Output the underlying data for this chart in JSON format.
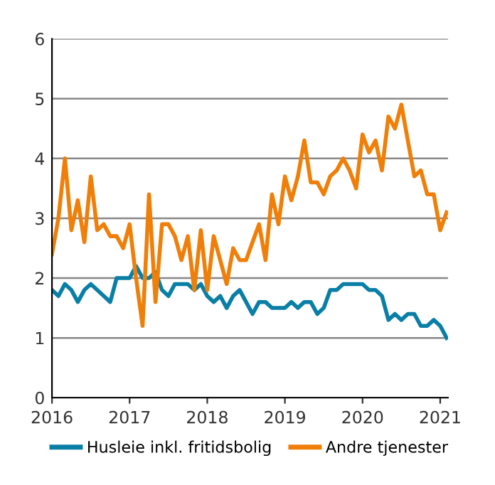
{
  "chart_data": {
    "type": "line",
    "x": [
      2016.0,
      2016.083,
      2016.167,
      2016.25,
      2016.333,
      2016.417,
      2016.5,
      2016.583,
      2016.667,
      2016.75,
      2016.833,
      2016.917,
      2017.0,
      2017.083,
      2017.167,
      2017.25,
      2017.333,
      2017.417,
      2017.5,
      2017.583,
      2017.667,
      2017.75,
      2017.833,
      2017.917,
      2018.0,
      2018.083,
      2018.167,
      2018.25,
      2018.333,
      2018.417,
      2018.5,
      2018.583,
      2018.667,
      2018.75,
      2018.833,
      2018.917,
      2019.0,
      2019.083,
      2019.167,
      2019.25,
      2019.333,
      2019.417,
      2019.5,
      2019.583,
      2019.667,
      2019.75,
      2019.833,
      2019.917,
      2020.0,
      2020.083,
      2020.167,
      2020.25,
      2020.333,
      2020.417,
      2020.5,
      2020.583,
      2020.667,
      2020.75,
      2020.833,
      2020.917,
      2021.0,
      2021.083
    ],
    "series": [
      {
        "name": "Husleie inkl. fritidsbolig",
        "color": "#0a7fa6",
        "values": [
          1.8,
          1.7,
          1.9,
          1.8,
          1.6,
          1.8,
          1.9,
          1.8,
          1.7,
          1.6,
          2.0,
          2.0,
          2.0,
          2.2,
          2.0,
          2.0,
          2.1,
          1.8,
          1.7,
          1.9,
          1.9,
          1.9,
          1.8,
          1.9,
          1.7,
          1.6,
          1.7,
          1.5,
          1.7,
          1.8,
          1.6,
          1.4,
          1.6,
          1.6,
          1.5,
          1.5,
          1.5,
          1.6,
          1.5,
          1.6,
          1.6,
          1.4,
          1.5,
          1.8,
          1.8,
          1.9,
          1.9,
          1.9,
          1.9,
          1.8,
          1.8,
          1.7,
          1.3,
          1.4,
          1.3,
          1.4,
          1.4,
          1.2,
          1.2,
          1.3,
          1.2,
          1.0
        ]
      },
      {
        "name": "Andre tjenester",
        "color": "#f07f09",
        "values": [
          2.4,
          3.0,
          4.0,
          2.8,
          3.3,
          2.6,
          3.7,
          2.8,
          2.9,
          2.7,
          2.7,
          2.5,
          2.9,
          2.0,
          1.2,
          3.4,
          1.6,
          2.9,
          2.9,
          2.7,
          2.3,
          2.7,
          1.8,
          2.8,
          1.8,
          2.7,
          2.3,
          1.9,
          2.5,
          2.3,
          2.3,
          2.6,
          2.9,
          2.3,
          3.4,
          2.9,
          3.7,
          3.3,
          3.7,
          4.3,
          3.6,
          3.6,
          3.4,
          3.7,
          3.8,
          4.0,
          3.8,
          3.5,
          4.4,
          4.1,
          4.3,
          3.8,
          4.7,
          4.5,
          4.9,
          4.3,
          3.7,
          3.8,
          3.4,
          3.4,
          2.8,
          3.1
        ]
      }
    ],
    "xlim": [
      2016,
      2021.1
    ],
    "xticks": [
      2016,
      2017,
      2018,
      2019,
      2020,
      2021
    ],
    "ylim": [
      0,
      6
    ],
    "yticks": [
      0,
      1,
      2,
      3,
      4,
      5,
      6
    ],
    "grid": "y",
    "legend": "bottom",
    "marker": "none",
    "line_style": "solid"
  }
}
